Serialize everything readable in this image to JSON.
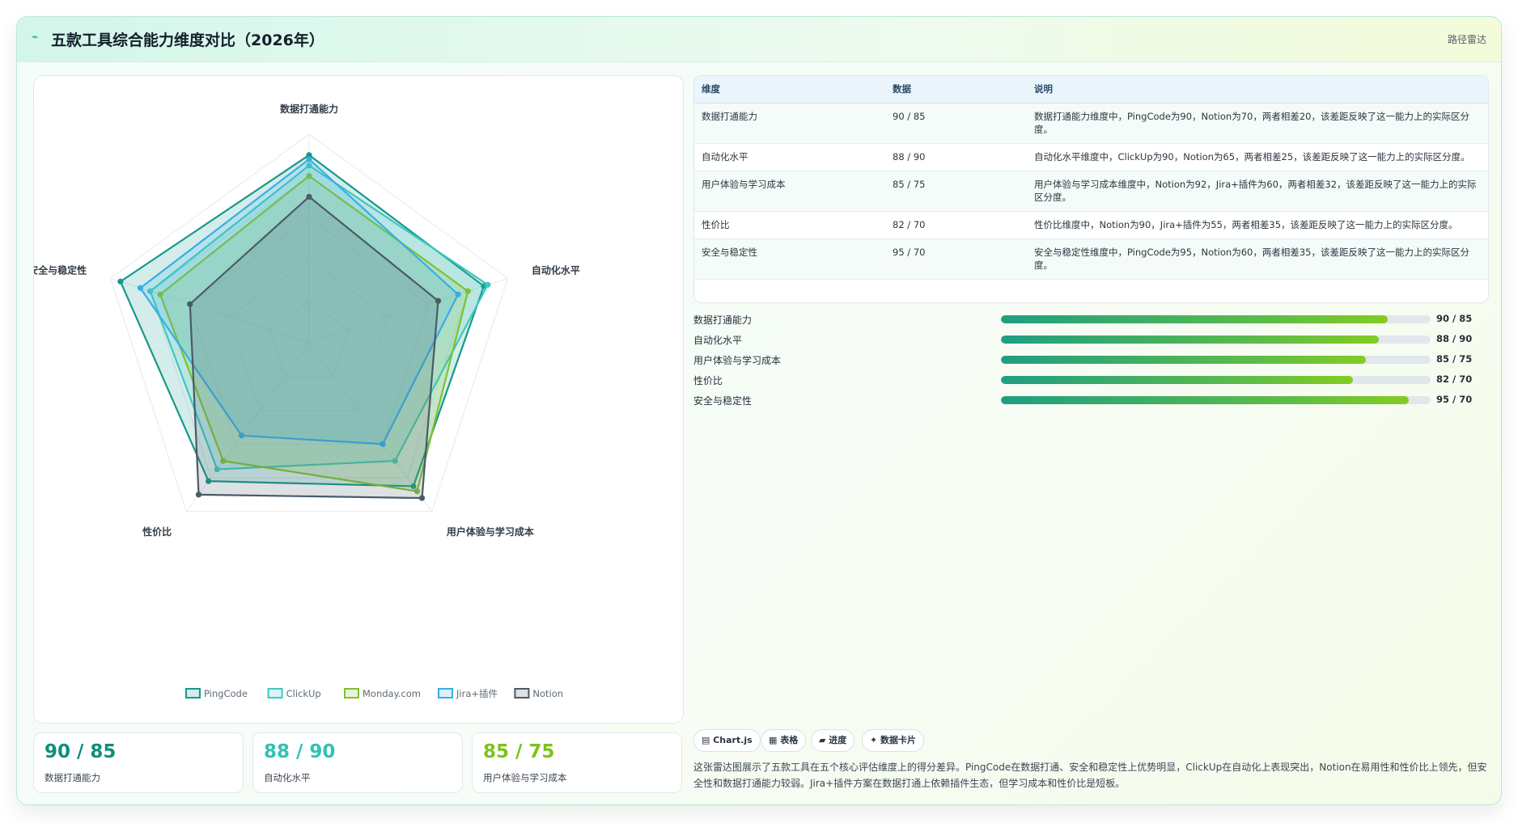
{
  "header": {
    "icon": "chart-icon",
    "title": "五款工具综合能力维度对比（2026年）",
    "tag": "路径雷达"
  },
  "chart_data": {
    "type": "radar",
    "indicators": [
      "数据打通能力",
      "自动化水平",
      "用户体验与学习成本",
      "性价比",
      "安全与稳定性"
    ],
    "max": 100,
    "series": [
      {
        "name": "PingCode",
        "color": "#16998a",
        "values": [
          90,
          88,
          85,
          82,
          95
        ]
      },
      {
        "name": "ClickUp",
        "color": "#3cc8c0",
        "values": [
          85,
          90,
          70,
          75,
          80
        ]
      },
      {
        "name": "Monday.com",
        "color": "#7ec230",
        "values": [
          80,
          80,
          88,
          70,
          75
        ]
      },
      {
        "name": "Jira+插件",
        "color": "#38aee6",
        "values": [
          88,
          75,
          60,
          55,
          85
        ]
      },
      {
        "name": "Notion",
        "color": "#4a5a68",
        "values": [
          70,
          65,
          92,
          90,
          60
        ]
      }
    ]
  },
  "table": {
    "headers": [
      "维度",
      "数据",
      "说明"
    ],
    "rows": [
      {
        "dim": "数据打通能力",
        "data": "90 / 85",
        "desc": "数据打通能力维度中，PingCode为90，Notion为70，两者相差20，该差距反映了这一能力上的实际区分度。"
      },
      {
        "dim": "自动化水平",
        "data": "88 / 90",
        "desc": "自动化水平维度中，ClickUp为90，Notion为65，两者相差25，该差距反映了这一能力上的实际区分度。"
      },
      {
        "dim": "用户体验与学习成本",
        "data": "85 / 75",
        "desc": "用户体验与学习成本维度中，Notion为92，Jira+插件为60，两者相差32，该差距反映了这一能力上的实际区分度。"
      },
      {
        "dim": "性价比",
        "data": "82 / 70",
        "desc": "性价比维度中，Notion为90，Jira+插件为55，两者相差35，该差距反映了这一能力上的实际区分度。"
      },
      {
        "dim": "安全与稳定性",
        "data": "95 / 70",
        "desc": "安全与稳定性维度中，PingCode为95，Notion为60，两者相差35，该差距反映了这一能力上的实际区分度。"
      }
    ]
  },
  "progress": [
    {
      "label": "数据打通能力",
      "value": 90,
      "text": "90 / 85"
    },
    {
      "label": "自动化水平",
      "value": 88,
      "text": "88 / 90"
    },
    {
      "label": "用户体验与学习成本",
      "value": 85,
      "text": "85 / 75"
    },
    {
      "label": "性价比",
      "value": 82,
      "text": "82 / 70"
    },
    {
      "label": "安全与稳定性",
      "value": 95,
      "text": "95 / 70"
    }
  ],
  "kpis": [
    {
      "value": "90 / 85",
      "label": "数据打通能力",
      "color": "#0f8f7a"
    },
    {
      "value": "88 / 90",
      "label": "自动化水平",
      "color": "#32c2b2"
    },
    {
      "value": "85 / 75",
      "label": "用户体验与学习成本",
      "color": "#7cc21c"
    }
  ],
  "chips": [
    "▤ Chart.js",
    "▦ 表格",
    "▰ 进度",
    "✦ 数据卡片"
  ],
  "summary": "这张雷达图展示了五款工具在五个核心评估维度上的得分差异。PingCode在数据打通、安全和稳定性上优势明显，ClickUp在自动化上表现突出，Notion在易用性和性价比上领先，但安全性和数据打通能力较弱。Jira+插件方案在数据打通上依赖插件生态，但学习成本和性价比是短板。"
}
